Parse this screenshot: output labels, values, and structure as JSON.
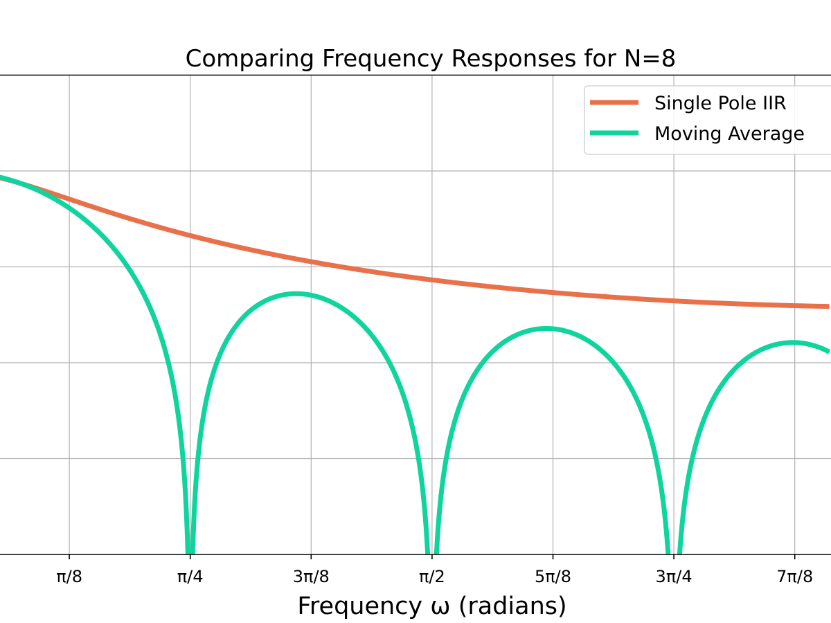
{
  "chart_data": {
    "type": "line",
    "title": "Comparing Frequency Responses for N=8",
    "xlabel": "Frequency ω (radians)",
    "ylabel": "",
    "x_unit": "radians (multiples of π)",
    "xlim_visible": [
      -0.0534,
      0.9107
    ],
    "ylim": [
      -40,
      10
    ],
    "y_unit": "dB",
    "grid": true,
    "x_ticks": [
      {
        "value": 0.125,
        "label": "π/8"
      },
      {
        "value": 0.25,
        "label": "π/4"
      },
      {
        "value": 0.375,
        "label": "3π/8"
      },
      {
        "value": 0.5,
        "label": "π/2"
      },
      {
        "value": 0.625,
        "label": "5π/8"
      },
      {
        "value": 0.75,
        "label": "3π/4"
      },
      {
        "value": 0.875,
        "label": "7π/8"
      }
    ],
    "y_gridlines": [
      0,
      -10,
      -20,
      -30
    ],
    "legend": {
      "placement": "top-right",
      "entries": [
        {
          "label": "Single Pole IIR",
          "color": "#e8714a"
        },
        {
          "label": "Moving Average",
          "color": "#0fd49e"
        }
      ]
    },
    "series": [
      {
        "name": "Single Pole IIR",
        "color": "#e8714a",
        "model": "single_pole",
        "alpha": 0.326,
        "sampled_points_db": [
          {
            "x": 0.0,
            "y": 0.0
          },
          {
            "x": 0.125,
            "y": -2.9
          },
          {
            "x": 0.25,
            "y": -6.8
          },
          {
            "x": 0.375,
            "y": -9.5
          },
          {
            "x": 0.5,
            "y": -11.4
          },
          {
            "x": 0.625,
            "y": -12.7
          },
          {
            "x": 0.75,
            "y": -13.6
          },
          {
            "x": 0.875,
            "y": -14.1
          }
        ]
      },
      {
        "name": "Moving Average",
        "color": "#0fd49e",
        "model": "moving_average",
        "N": 8,
        "sampled_points_db": [
          {
            "x": 0.0,
            "y": 0.0
          },
          {
            "x": 0.125,
            "y": -3.4
          },
          {
            "x": 0.25,
            "y": -40
          },
          {
            "x": 0.34,
            "y": -12.8
          },
          {
            "x": 0.5,
            "y": -40
          },
          {
            "x": 0.61,
            "y": -16.4
          },
          {
            "x": 0.75,
            "y": -40
          },
          {
            "x": 0.875,
            "y": -17.9
          }
        ]
      }
    ]
  }
}
